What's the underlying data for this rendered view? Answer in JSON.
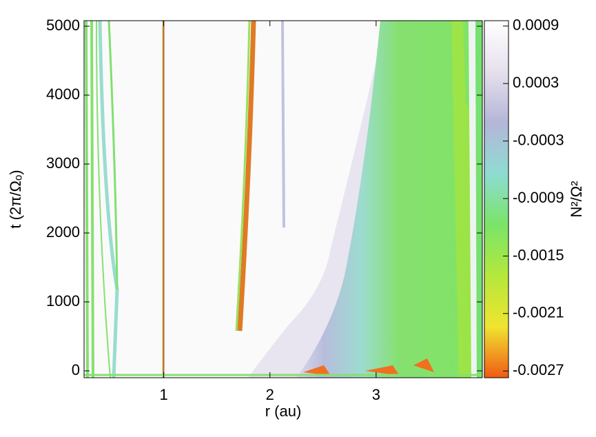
{
  "chart_data": {
    "type": "heatmap",
    "xlabel": "r (au)",
    "ylabel": "t (2π/Ωₒ)",
    "xlim": [
      0.25,
      4.0
    ],
    "xticks": [
      1,
      2,
      3
    ],
    "ylim": [
      -100,
      5080
    ],
    "yticks": [
      0,
      1000,
      2000,
      3000,
      4000,
      5000
    ],
    "colorbar": {
      "label": "N²/Ω²",
      "lim": [
        -0.00277,
        0.000956
      ],
      "ticks": [
        0.0009,
        0.0003,
        -0.0003,
        -0.0009,
        -0.0015,
        -0.0021,
        -0.0027
      ],
      "colors": [
        "#ffffff",
        "#e6e0ec",
        "#b4b6d8",
        "#8edcd2",
        "#7ae468",
        "#b4e83c",
        "#f0e430",
        "#f05a14"
      ]
    }
  }
}
